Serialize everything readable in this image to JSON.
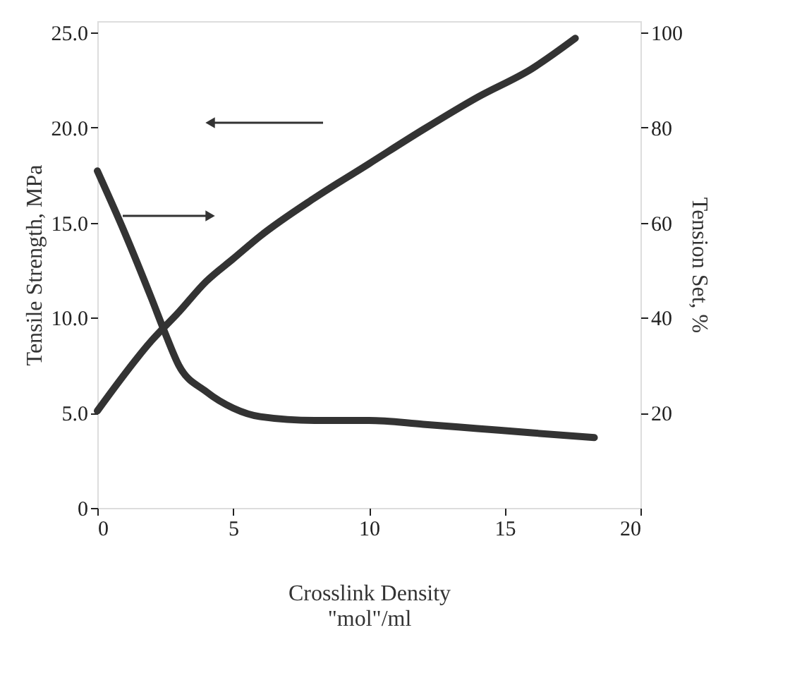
{
  "chart_data": {
    "type": "line",
    "xlabel": "Crosslink Density\n\"mol\"/ml",
    "ylabel": "Tensile Strength, MPa",
    "y2label": "Tension Set, %",
    "xlim": [
      0,
      20
    ],
    "xticks": [
      0,
      5,
      10,
      15,
      20
    ],
    "ylim": [
      0,
      25.6
    ],
    "yticks": [
      0,
      {
        "value": 5,
        "label": "5.0"
      },
      {
        "value": 10,
        "label": "10.0"
      },
      {
        "value": 15,
        "label": "15.0"
      },
      {
        "value": 20,
        "label": "20.0"
      },
      {
        "value": 25,
        "label": "25.0"
      }
    ],
    "y2lim": [
      0,
      102.4
    ],
    "y2ticks": [
      20,
      40,
      60,
      80,
      100
    ],
    "grid": false,
    "line_style": "solid",
    "marker": "none",
    "series": [
      {
        "color": "#333333",
        "x": [
          0,
          2,
          3,
          4,
          5,
          6,
          8,
          10,
          12,
          14,
          16,
          17.6
        ],
        "values": [
          5.1,
          8.8,
          10.3,
          11.9,
          13.1,
          14.3,
          16.3,
          18.1,
          19.9,
          21.6,
          23.1,
          24.7
        ]
      },
      {
        "color": "#333333",
        "axis": "y2",
        "x": [
          0,
          1,
          2,
          2.5,
          3,
          4,
          5,
          6,
          8,
          10,
          12,
          14,
          16,
          18.3
        ],
        "values": [
          70.9,
          58,
          44,
          36.7,
          30,
          24.5,
          21,
          19.2,
          18.4,
          18.4,
          17.6,
          16.7,
          15.8,
          14.8
        ]
      }
    ]
  }
}
